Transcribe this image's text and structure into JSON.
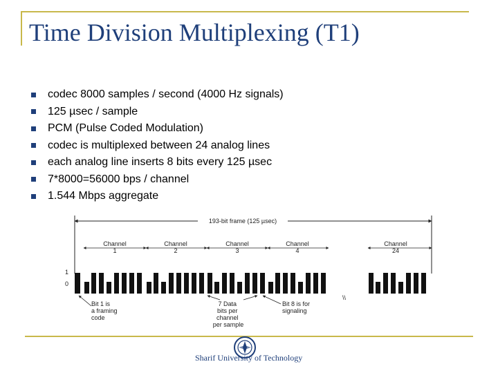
{
  "slide": {
    "title": "Time Division Multiplexing (T1)",
    "bullets": [
      "codec 8000 samples / second (4000 Hz signals)",
      "125 µsec / sample",
      "PCM (Pulse Coded Modulation)",
      "codec is multiplexed between 24 analog lines",
      "each analog line inserts 8 bits every 125 µsec",
      "7*8000=56000 bps / channel",
      "1.544 Mbps aggregate"
    ],
    "footer": "Sharif University of Technology",
    "colors": {
      "title": "#1f3f7a",
      "accent": "#c8b84a",
      "bullet": "#1f3f7a"
    }
  },
  "diagram": {
    "frame_label": "193-bit frame  (125 µsec)",
    "channels": [
      {
        "label": "Channel",
        "number": "1",
        "bits": [
          0,
          1,
          1,
          0,
          1,
          1,
          1,
          1
        ]
      },
      {
        "label": "Channel",
        "number": "2",
        "bits": [
          0,
          1,
          0,
          1,
          1,
          1,
          1,
          1
        ]
      },
      {
        "label": "Channel",
        "number": "3",
        "bits": [
          1,
          0,
          1,
          1,
          0,
          1,
          1,
          1
        ]
      },
      {
        "label": "Channel",
        "number": "4",
        "bits": [
          0,
          1,
          1,
          1,
          0,
          1,
          1,
          1
        ]
      },
      {
        "label": "Channel",
        "number": "24",
        "bits": [
          1,
          0,
          1,
          1,
          0,
          1,
          1,
          1
        ]
      }
    ],
    "levels": [
      "1",
      "0"
    ],
    "break_mark": "\\\\",
    "annotations": [
      {
        "text": [
          "Bit 1 is",
          "a framing",
          "code"
        ]
      },
      {
        "text": [
          "7 Data",
          "bits per",
          "channel",
          "per sample"
        ]
      },
      {
        "text": [
          "Bit 8 is for",
          "signaling"
        ]
      }
    ]
  }
}
